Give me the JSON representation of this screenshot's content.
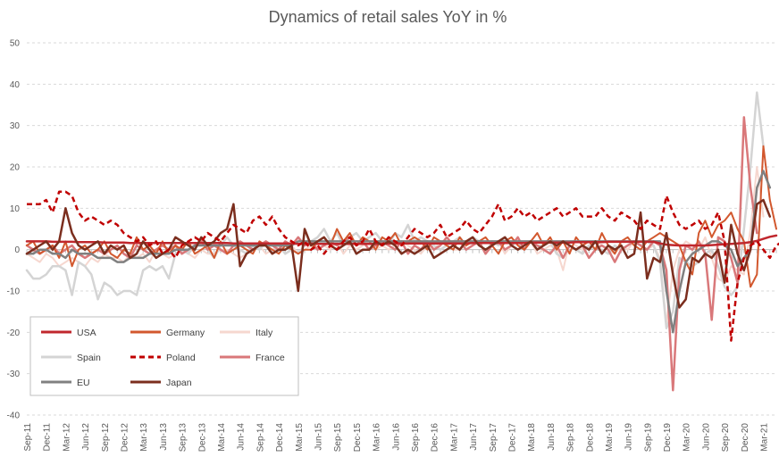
{
  "chart_data": {
    "type": "line",
    "title": "Dynamics of retail sales YoY in %",
    "xlabel": "",
    "ylabel": "",
    "ylim": [
      -40,
      50
    ],
    "yticks": [
      -40,
      -30,
      -20,
      -10,
      0,
      10,
      20,
      30,
      40,
      50
    ],
    "x_tick_labels": [
      "Sep-11",
      "Dec-11",
      "Mar-12",
      "Jun-12",
      "Sep-12",
      "Dec-12",
      "Mar-13",
      "Jun-13",
      "Sep-13",
      "Dec-13",
      "Mar-14",
      "Jun-14",
      "Sep-14",
      "Dec-14",
      "Mar-15",
      "Jun-15",
      "Sep-15",
      "Dec-15",
      "Mar-16",
      "Jun-16",
      "Sep-16",
      "Dec-16",
      "Mar-17",
      "Jun-17",
      "Sep-17",
      "Dec-17",
      "Mar-18",
      "Jun-18",
      "Sep-18",
      "Dec-18",
      "Mar-19",
      "Jun-19",
      "Sep-19",
      "Dec-19",
      "Mar-20",
      "Jun-20",
      "Sep-20",
      "Dec-20",
      "Mar-21"
    ],
    "n_points": 117,
    "grid": true,
    "legend_position": "bottom-left",
    "series": [
      {
        "name": "USA",
        "color": "#C0272D",
        "dash": "solid",
        "width": 2.5,
        "values": [
          2,
          2,
          2,
          2,
          1.9,
          1.9,
          1.9,
          1.9,
          1.8,
          1.8,
          1.8,
          1.8,
          1.7,
          1.7,
          1.7,
          1.7,
          1.6,
          1.6,
          1.6,
          1.6,
          1.6,
          1.6,
          1.6,
          1.6,
          1.6,
          1.6,
          1.6,
          1.6,
          1.6,
          1.6,
          1.6,
          1.6,
          1.5,
          1.5,
          1.5,
          1.5,
          1.5,
          1.5,
          1.5,
          1.5,
          1.5,
          1.5,
          1.4,
          1.4,
          1.4,
          1.4,
          1.4,
          1.4,
          1.4,
          1.4,
          1.4,
          1.4,
          1.4,
          1.4,
          1.4,
          1.4,
          1.5,
          1.5,
          1.5,
          1.5,
          1.5,
          1.5,
          1.5,
          1.5,
          1.5,
          1.5,
          1.5,
          1.5,
          1.5,
          1.6,
          1.6,
          1.6,
          1.6,
          1.6,
          1.6,
          1.6,
          1.6,
          1.6,
          1.7,
          1.7,
          1.7,
          1.7,
          1.7,
          1.7,
          1.7,
          1.8,
          1.8,
          1.8,
          1.8,
          1.8,
          1.9,
          1.9,
          1.9,
          1.9,
          1.9,
          1.9,
          1.9,
          1.9,
          1.5,
          1.2,
          1.1,
          1,
          1,
          1,
          1,
          1,
          1.1,
          1.2,
          1.3,
          1.4,
          1.5,
          1.6,
          1.8,
          2.1,
          2.6,
          3.1,
          3.4
        ]
      },
      {
        "name": "Germany",
        "color": "#D2582E",
        "dash": "solid",
        "width": 2,
        "values": [
          1,
          2,
          -1,
          0,
          1,
          -2,
          2,
          -4,
          0,
          1,
          -1,
          0,
          2,
          -1,
          -2,
          0,
          -1,
          3,
          0,
          1,
          -1,
          2,
          -1,
          1,
          0,
          2,
          -1,
          0,
          1,
          -2,
          2,
          -1,
          0,
          1,
          0,
          -1,
          2,
          1,
          0,
          -1,
          1,
          0,
          -1,
          0,
          0,
          2,
          3,
          1,
          5,
          2,
          4,
          1,
          3,
          2,
          0,
          3,
          2,
          4,
          1,
          2,
          3,
          2,
          0,
          3,
          2,
          1,
          0,
          3,
          1,
          2,
          2,
          3,
          1,
          -1,
          2,
          3,
          1,
          0,
          2,
          4,
          1,
          3,
          0,
          2,
          -1,
          3,
          1,
          2,
          0,
          4,
          1,
          -1,
          2,
          3,
          1,
          0,
          2,
          3,
          4,
          3,
          2,
          1,
          -3,
          -6,
          4,
          7,
          3,
          6,
          7,
          9,
          5,
          2,
          -9,
          -6,
          25,
          12,
          5
        ]
      },
      {
        "name": "Italy",
        "color": "#F6D7CF",
        "dash": "solid",
        "width": 2,
        "values": [
          -1,
          -2,
          -3,
          -1,
          -2,
          -4,
          -3,
          -2,
          -3,
          -4,
          -2,
          -3,
          -1,
          -2,
          -2,
          -3,
          -1,
          -2,
          -1,
          -3,
          0,
          -1,
          -2,
          -1,
          0,
          -1,
          -2,
          0,
          -1,
          -1,
          0,
          0,
          -1,
          -2,
          -1,
          0,
          1,
          -1,
          0,
          1,
          0,
          1,
          -1,
          0,
          1,
          0,
          1,
          0,
          2,
          -1,
          1,
          0,
          1,
          2,
          0,
          1,
          0,
          1,
          2,
          1,
          0,
          -1,
          1,
          0,
          2,
          1,
          0,
          0,
          1,
          2,
          1,
          0,
          1,
          2,
          -1,
          1,
          0,
          1,
          2,
          -1,
          0,
          1,
          0,
          -5,
          2,
          1,
          0,
          1,
          2,
          1,
          0,
          -1,
          1,
          0,
          2,
          1,
          0,
          1,
          -2,
          -18,
          -5,
          0,
          2,
          1,
          0,
          3,
          -2,
          -7,
          -8,
          -4,
          -5,
          -6,
          5,
          20,
          8
        ]
      },
      {
        "name": "Spain",
        "color": "#D4D4D4",
        "dash": "solid",
        "width": 2.5,
        "values": [
          -5,
          -7,
          -7,
          -6,
          -4,
          -4,
          -5,
          -11,
          -3,
          -4,
          -6,
          -12,
          -8,
          -9,
          -11,
          -10,
          -10,
          -11,
          -5,
          -4,
          -5,
          -4,
          -7,
          -1,
          0,
          -1,
          1,
          2,
          0,
          -2,
          1,
          3,
          1,
          0,
          -1,
          1,
          0,
          2,
          1,
          1,
          -1,
          0,
          -1,
          1,
          2,
          3,
          5,
          2,
          4,
          1,
          3,
          4,
          2,
          3,
          4,
          2,
          1,
          4,
          3,
          6,
          2,
          3,
          2,
          1,
          0,
          1,
          2,
          3,
          1,
          3,
          2,
          -1,
          2,
          1,
          3,
          1,
          2,
          0,
          2,
          1,
          1,
          2,
          -1,
          -2,
          1,
          0,
          -1,
          1,
          0,
          0,
          -1,
          1,
          0,
          1,
          2,
          1,
          2,
          1,
          -3,
          -19,
          -15,
          -2,
          -3,
          -4,
          -3,
          -1,
          0,
          -4,
          -9,
          -11,
          -9,
          5,
          20,
          38,
          25
        ]
      },
      {
        "name": "Poland",
        "color": "#C00000",
        "dash": "dashed",
        "width": 2.5,
        "values": [
          11,
          11,
          11,
          12,
          9,
          14,
          14,
          13,
          9,
          7,
          8,
          7,
          6,
          7,
          6,
          4,
          3,
          2,
          3,
          1,
          2,
          -1,
          0,
          -2,
          1,
          2,
          3,
          2,
          4,
          3,
          2,
          4,
          6,
          5,
          4,
          7,
          8,
          6,
          8,
          5,
          3,
          2,
          1,
          2,
          0,
          1,
          -1,
          1,
          0,
          2,
          3,
          1,
          2,
          5,
          2,
          1,
          3,
          2,
          1,
          3,
          5,
          4,
          3,
          4,
          6,
          3,
          4,
          5,
          7,
          5,
          4,
          6,
          8,
          11,
          7,
          8,
          10,
          8,
          9,
          7,
          8,
          9,
          10,
          8,
          9,
          10,
          8,
          8,
          8,
          10,
          8,
          7,
          9,
          8,
          7,
          5,
          7,
          6,
          5,
          13,
          9,
          6,
          5,
          6,
          7,
          5,
          6,
          9,
          2,
          -22,
          -8,
          -2,
          1,
          2,
          0,
          -2,
          1,
          2,
          3
        ]
      },
      {
        "name": "France",
        "color": "#D9787A",
        "dash": "solid",
        "width": 2.5,
        "values": [
          1,
          0,
          -1,
          0,
          1,
          -1,
          0,
          1,
          -1,
          -2,
          -1,
          0,
          -1,
          0,
          1,
          -1,
          -2,
          1,
          0,
          -1,
          0,
          1,
          0,
          1,
          -1,
          0,
          1,
          2,
          0,
          1,
          0,
          -1,
          1,
          2,
          1,
          0,
          1,
          2,
          1,
          0,
          2,
          1,
          3,
          1,
          2,
          0,
          1,
          2,
          1,
          2,
          3,
          1,
          2,
          0,
          1,
          2,
          1,
          0,
          2,
          -1,
          1,
          0,
          2,
          0,
          1,
          3,
          1,
          2,
          0,
          1,
          2,
          -1,
          1,
          2,
          0,
          1,
          3,
          0,
          2,
          1,
          0,
          -1,
          1,
          -2,
          1,
          0,
          1,
          -2,
          0,
          1,
          0,
          -3,
          0,
          1,
          2,
          1,
          0,
          2,
          1,
          -5,
          -34,
          -5,
          1,
          0,
          2,
          -1,
          -17,
          3,
          2,
          -2,
          -8,
          32,
          15,
          4
        ]
      },
      {
        "name": "EU",
        "color": "#808080",
        "dash": "solid",
        "width": 2.5,
        "values": [
          -1,
          -1,
          0,
          0,
          -1,
          -1,
          -2,
          0,
          -1,
          -1,
          -1,
          -2,
          -2,
          -2,
          -3,
          -3,
          -2,
          -2,
          -2,
          -1,
          -1,
          -1,
          -1,
          0,
          0,
          0,
          1,
          1,
          1,
          1,
          1,
          1,
          1,
          1,
          1,
          1,
          1,
          1,
          1,
          1,
          1,
          1,
          2,
          2,
          2,
          2,
          2,
          2,
          2,
          2,
          2,
          2,
          2,
          2,
          2,
          2,
          2,
          2,
          2,
          2,
          2,
          2,
          2,
          2,
          2,
          2,
          2,
          2,
          2,
          2,
          2,
          2,
          2,
          2,
          2,
          2,
          2,
          2,
          2,
          2,
          2,
          2,
          2,
          2,
          2,
          2,
          2,
          2,
          2,
          2,
          2,
          2,
          2,
          2,
          2,
          2,
          2,
          2,
          2,
          -10,
          -20,
          -10,
          -3,
          -1,
          0,
          1,
          2,
          2,
          1,
          0,
          -4,
          -2,
          0,
          15,
          19,
          15
        ]
      },
      {
        "name": "Japan",
        "color": "#7B2E1E",
        "dash": "solid",
        "width": 2.5,
        "values": [
          -1,
          0,
          1,
          2,
          0,
          2,
          10,
          4,
          1,
          0,
          1,
          2,
          -1,
          1,
          0,
          1,
          -2,
          -1,
          2,
          0,
          -2,
          -1,
          0,
          3,
          2,
          1,
          0,
          3,
          1,
          2,
          4,
          5,
          11,
          -4,
          -1,
          0,
          1,
          1,
          -1,
          0,
          0,
          1,
          -10,
          5,
          1,
          2,
          3,
          1,
          0,
          1,
          2,
          -1,
          0,
          0,
          2,
          1,
          2,
          1,
          -1,
          0,
          -1,
          0,
          1,
          -2,
          -1,
          0,
          1,
          0,
          2,
          3,
          1,
          0,
          1,
          2,
          3,
          1,
          0,
          1,
          2,
          0,
          1,
          2,
          1,
          2,
          1,
          0,
          1,
          0,
          2,
          -1,
          1,
          0,
          1,
          -2,
          -1,
          9,
          -7,
          -2,
          -3,
          4,
          -6,
          -14,
          -12,
          -2,
          -3,
          -1,
          -2,
          0,
          -8,
          6,
          -1,
          -5,
          0,
          11,
          12,
          8
        ]
      }
    ]
  }
}
